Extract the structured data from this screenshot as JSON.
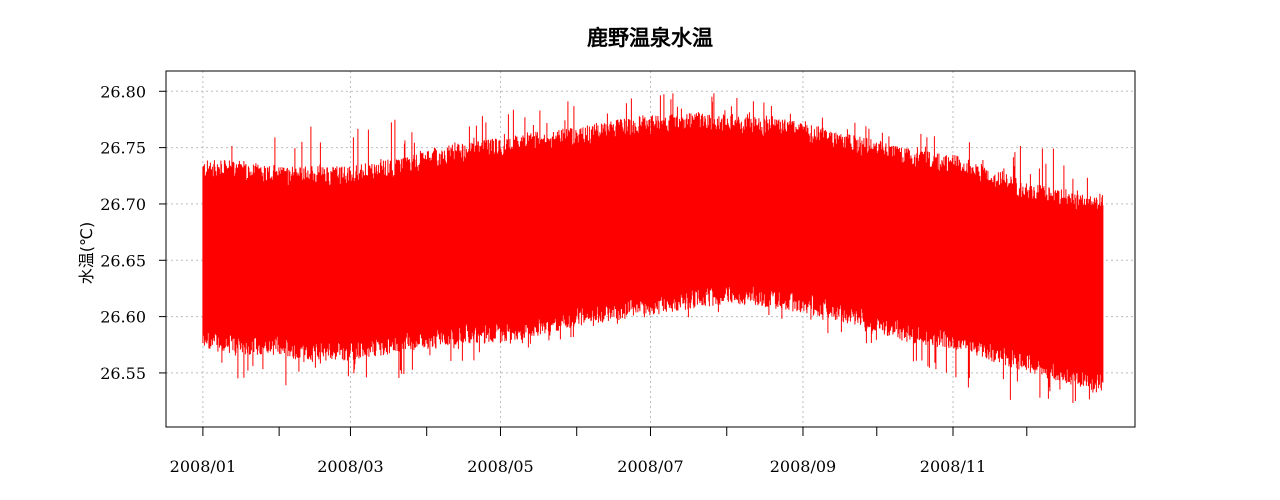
{
  "chart_data": {
    "type": "line",
    "title": "鹿野温泉水温",
    "xlabel": "",
    "ylabel": "水温(℃)",
    "x_range": [
      "2008/01/01",
      "2008/12/31"
    ],
    "xlim": [
      "2007/12/17",
      "2009/01/14"
    ],
    "ylim": [
      26.502,
      26.818
    ],
    "y_ticks": [
      26.55,
      26.6,
      26.65,
      26.7,
      26.75,
      26.8
    ],
    "y_tick_labels": [
      "26.55",
      "26.60",
      "26.65",
      "26.70",
      "26.75",
      "26.80"
    ],
    "x_ticks": [
      "2008/01/01",
      "2008/02/01",
      "2008/03/01",
      "2008/04/01",
      "2008/05/01",
      "2008/06/01",
      "2008/07/01",
      "2008/08/01",
      "2008/09/01",
      "2008/10/01",
      "2008/11/01",
      "2008/12/01"
    ],
    "x_tick_labels": [
      "2008/01",
      "",
      "2008/03",
      "",
      "2008/05",
      "",
      "2008/07",
      "",
      "2008/09",
      "",
      "2008/11",
      ""
    ],
    "grid": true,
    "series": [
      {
        "color": "#ff0000",
        "envelope": {
          "dates": [
            "2008/01/01",
            "2008/01/15",
            "2008/02/01",
            "2008/02/15",
            "2008/03/01",
            "2008/03/15",
            "2008/04/01",
            "2008/04/15",
            "2008/05/01",
            "2008/05/15",
            "2008/06/01",
            "2008/06/15",
            "2008/07/01",
            "2008/07/15",
            "2008/08/01",
            "2008/08/15",
            "2008/09/01",
            "2008/09/15",
            "2008/10/01",
            "2008/10/15",
            "2008/11/01",
            "2008/11/15",
            "2008/12/01",
            "2008/12/15",
            "2008/12/31"
          ],
          "lower": [
            26.58,
            26.575,
            26.575,
            26.57,
            26.57,
            26.575,
            26.58,
            26.585,
            26.585,
            26.59,
            26.6,
            26.605,
            26.61,
            26.615,
            26.62,
            26.618,
            26.612,
            26.605,
            26.595,
            26.585,
            26.58,
            26.57,
            26.56,
            26.55,
            26.54
          ],
          "upper": [
            26.73,
            26.73,
            26.725,
            26.725,
            26.725,
            26.73,
            26.74,
            26.745,
            26.75,
            26.755,
            26.76,
            26.765,
            26.77,
            26.772,
            26.772,
            26.768,
            26.765,
            26.755,
            26.748,
            26.74,
            26.735,
            26.725,
            26.71,
            26.705,
            26.7
          ],
          "min_spike": [
            26.55,
            26.545,
            26.535,
            26.55,
            26.545,
            26.535,
            26.56,
            26.56,
            26.555,
            26.57,
            26.58,
            26.59,
            26.595,
            26.59,
            26.6,
            26.6,
            26.595,
            26.58,
            26.575,
            26.56,
            26.545,
            26.52,
            26.525,
            26.515,
            26.53
          ],
          "max_spike": [
            26.75,
            26.765,
            26.76,
            26.775,
            26.77,
            26.79,
            26.765,
            26.775,
            26.785,
            26.79,
            26.795,
            26.798,
            26.8,
            26.803,
            26.797,
            26.795,
            26.78,
            26.775,
            26.772,
            26.765,
            26.76,
            26.755,
            26.752,
            26.75,
            26.72
          ]
        }
      }
    ]
  }
}
